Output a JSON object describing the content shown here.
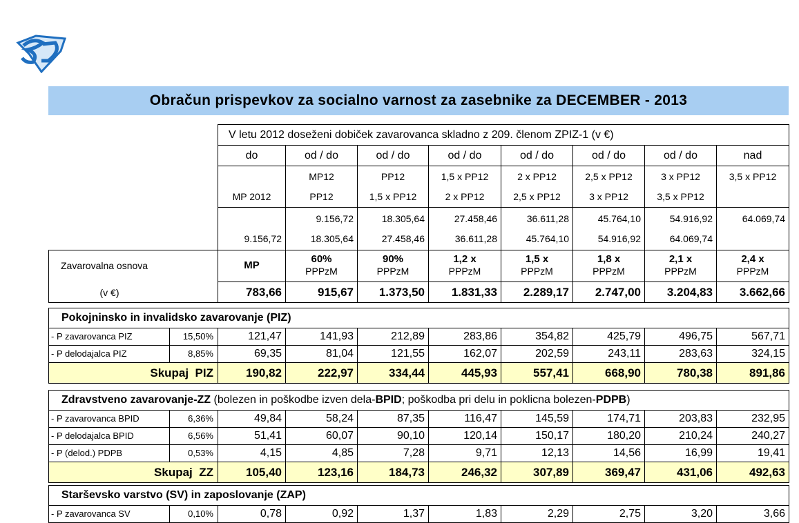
{
  "title": "Obračun prispevkov za socialno varnost za zasebnike za DECEMBER - 2013",
  "table": {
    "header": "V letu 2012 doseženi dobiček zavarovanca skladno z 209. členom ZPIZ-1 (v €)",
    "bounds_labels": [
      "do",
      "od / do",
      "od / do",
      "od / do",
      "od / do",
      "od / do",
      "od / do",
      "nad"
    ],
    "bounds_names": [
      {
        "bottom": "MP 2012"
      },
      {
        "top": "MP12",
        "bottom": "PP12"
      },
      {
        "top": "PP12",
        "bottom": "1,5 x PP12"
      },
      {
        "top": "1,5 x PP12",
        "bottom": "2 x PP12"
      },
      {
        "top": "2 x PP12",
        "bottom": "2,5 x PP12"
      },
      {
        "top": "2,5 x PP12",
        "bottom": "3 x PP12"
      },
      {
        "top": "3 x PP12",
        "bottom": "3,5 x PP12"
      },
      {
        "top": "3,5 x PP12"
      }
    ],
    "bounds_values": [
      {
        "bottom": "9.156,72"
      },
      {
        "top": "9.156,72",
        "bottom": "18.305,64"
      },
      {
        "top": "18.305,64",
        "bottom": "27.458,46"
      },
      {
        "top": "27.458,46",
        "bottom": "36.611,28"
      },
      {
        "top": "36.611,28",
        "bottom": "45.764,10"
      },
      {
        "top": "45.764,10",
        "bottom": "54.916,92"
      },
      {
        "top": "54.916,92",
        "bottom": "64.069,74"
      },
      {
        "top": "64.069,74"
      }
    ],
    "base_label": "Zavarovalna osnova",
    "base_unit": "(v €)",
    "base_factors": [
      {
        "single": "MP"
      },
      {
        "top": "60%",
        "bottom": "PPPzM"
      },
      {
        "top": "90%",
        "bottom": "PPPzM"
      },
      {
        "top": "1,2 x",
        "bottom": "PPPzM"
      },
      {
        "top": "1,5 x",
        "bottom": "PPPzM"
      },
      {
        "top": "1,8 x",
        "bottom": "PPPzM"
      },
      {
        "top": "2,1 x",
        "bottom": "PPPzM"
      },
      {
        "top": "2,4 x",
        "bottom": "PPPzM"
      }
    ],
    "base_values": [
      "783,66",
      "915,67",
      "1.373,50",
      "1.831,33",
      "2.289,17",
      "2.747,00",
      "3.204,83",
      "3.662,66"
    ]
  },
  "sections": [
    {
      "title": [
        {
          "text": "Pokojninsko in invalidsko zavarovanje (PIZ)",
          "bold": true
        }
      ],
      "rows": [
        {
          "label": "- P zavarovanca PIZ",
          "rate": "15,50%",
          "values": [
            "121,47",
            "141,93",
            "212,89",
            "283,86",
            "354,82",
            "425,79",
            "496,75",
            "567,71"
          ]
        },
        {
          "label": "- P delodajalca PIZ",
          "rate": "8,85%",
          "values": [
            "69,35",
            "81,04",
            "121,55",
            "162,07",
            "202,59",
            "243,11",
            "283,63",
            "324,15"
          ]
        }
      ],
      "total": {
        "label": "Skupaj  PIZ",
        "values": [
          "190,82",
          "222,97",
          "334,44",
          "445,93",
          "557,41",
          "668,90",
          "780,38",
          "891,86"
        ]
      }
    },
    {
      "title": [
        {
          "text": "Zdravstveno zavarovanje-ZZ",
          "bold": true
        },
        {
          "text": " (bolezen in poškodbe izven dela-",
          "bold": false
        },
        {
          "text": "BPID",
          "bold": true
        },
        {
          "text": "; poškodba pri delu in poklicna bolezen-",
          "bold": false
        },
        {
          "text": "PDPB",
          "bold": true
        },
        {
          "text": ")",
          "bold": false
        }
      ],
      "rows": [
        {
          "label": "- P zavarovanca BPID",
          "rate": "6,36%",
          "values": [
            "49,84",
            "58,24",
            "87,35",
            "116,47",
            "145,59",
            "174,71",
            "203,83",
            "232,95"
          ]
        },
        {
          "label": "- P delodajalca BPID",
          "rate": "6,56%",
          "values": [
            "51,41",
            "60,07",
            "90,10",
            "120,14",
            "150,17",
            "180,20",
            "210,24",
            "240,27"
          ]
        },
        {
          "label": "- P (delod.) PDPB",
          "rate": "0,53%",
          "values": [
            "4,15",
            "4,85",
            "7,28",
            "9,71",
            "12,13",
            "14,56",
            "16,99",
            "19,41"
          ]
        }
      ],
      "total": {
        "label": "Skupaj  ZZ",
        "values": [
          "105,40",
          "123,16",
          "184,73",
          "246,32",
          "307,89",
          "369,47",
          "431,06",
          "492,63"
        ]
      }
    },
    {
      "title": [
        {
          "text": "Starševsko varstvo (SV) in zaposlovanje (ZAP)",
          "bold": true
        }
      ],
      "rows": [
        {
          "label": "- P zavarovanca SV",
          "rate": "0,10%",
          "values": [
            "0,78",
            "0,92",
            "1,37",
            "1,83",
            "2,29",
            "2,75",
            "3,20",
            "3,66"
          ]
        }
      ]
    }
  ]
}
